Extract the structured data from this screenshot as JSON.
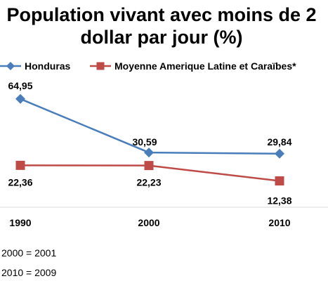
{
  "chart_data": {
    "type": "line",
    "title_lines": [
      "Population vivant avec moins de 2",
      "dollar par jour (%)"
    ],
    "categories": [
      "1990",
      "2000",
      "2010"
    ],
    "series": [
      {
        "name": "Honduras",
        "values": [
          64.95,
          30.59,
          29.84
        ],
        "labels": [
          "64,95",
          "30,59",
          "29,84"
        ],
        "color": "#4a7ebb",
        "marker": "diamond"
      },
      {
        "name": "Moyenne Amerique Latine et Caraïbes*",
        "values": [
          22.36,
          22.23,
          12.38
        ],
        "labels": [
          "22,36",
          "22,23",
          "12,38"
        ],
        "color": "#be4b48",
        "marker": "square"
      }
    ],
    "legend_position": "top",
    "grid": false
  },
  "notes": [
    "2000 = 2001",
    "2010 = 2009"
  ]
}
